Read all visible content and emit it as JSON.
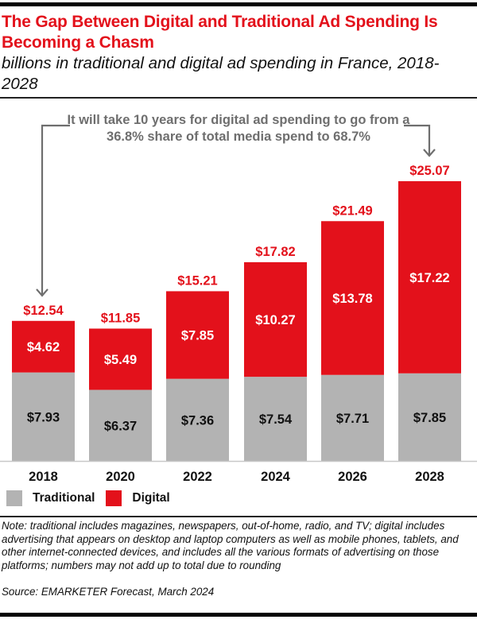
{
  "header": {
    "title": "The Gap Between Digital and Traditional Ad Spending Is Becoming a Chasm",
    "subtitle": "billions in traditional and digital ad spending in France, 2018-2028"
  },
  "annotation": {
    "text": "It will take 10 years for digital ad spending to go from a 36.8% share of total media spend to 68.7%",
    "from_year": "2018",
    "to_year": "2028"
  },
  "legend": [
    {
      "name": "Traditional",
      "color": "#b3b3b3"
    },
    {
      "name": "Digital",
      "color": "#e3111b"
    }
  ],
  "footer": {
    "note": "Note: traditional includes magazines, newspapers, out-of-home, radio, and TV; digital includes advertising that appears on desktop and laptop computers as well as mobile phones, tablets, and other internet-connected devices, and includes all the various formats of advertising on those platforms; numbers may not add up to total due to rounding",
    "source": "Source: EMARKETER Forecast, March 2024"
  },
  "colors": {
    "accent": "#e3111b",
    "traditional": "#b3b3b3",
    "annotation": "#6e6e6e"
  },
  "chart_data": {
    "type": "bar",
    "stacked": true,
    "title": "The Gap Between Digital and Traditional Ad Spending Is Becoming a Chasm",
    "subtitle": "billions in traditional and digital ad spending in France, 2018-2028",
    "xlabel": "",
    "ylabel": "",
    "categories": [
      "2018",
      "2020",
      "2022",
      "2024",
      "2026",
      "2028"
    ],
    "series": [
      {
        "name": "Traditional",
        "color": "#b3b3b3",
        "values": [
          7.93,
          6.37,
          7.36,
          7.54,
          7.71,
          7.85
        ],
        "labels": [
          "$7.93",
          "$6.37",
          "$7.36",
          "$7.54",
          "$7.71",
          "$7.85"
        ]
      },
      {
        "name": "Digital",
        "color": "#e3111b",
        "values": [
          4.62,
          5.49,
          7.85,
          10.27,
          13.78,
          17.22
        ],
        "labels": [
          "$4.62",
          "$5.49",
          "$7.85",
          "$10.27",
          "$13.78",
          "$17.22"
        ]
      }
    ],
    "totals": [
      12.54,
      11.85,
      15.21,
      17.82,
      21.49,
      25.07
    ],
    "total_labels": [
      "$12.54",
      "$11.85",
      "$15.21",
      "$17.82",
      "$21.49",
      "$25.07"
    ],
    "ylim": [
      0,
      25.07
    ],
    "grid": false,
    "legend_position": "bottom-left"
  }
}
